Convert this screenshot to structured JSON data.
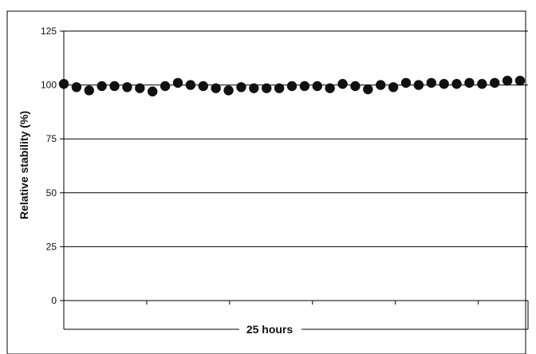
{
  "chart_data": {
    "type": "scatter",
    "title": "",
    "xlabel": "25 hours",
    "ylabel": "Relative stability (%)",
    "ylim": [
      0,
      125
    ],
    "yticks": [
      0,
      25,
      50,
      75,
      100,
      125
    ],
    "ytick_labels": [
      "0",
      "25",
      "50",
      "75",
      "100",
      "125"
    ],
    "grid": true,
    "legend": "none",
    "marker_color": "#111111",
    "series": [
      {
        "values": [
          100.5,
          99,
          97.5,
          99.5,
          99.5,
          99,
          98.5,
          97,
          99.5,
          101,
          100,
          99.5,
          98.5,
          97.5,
          99,
          98.5,
          98.5,
          98.5,
          99.5,
          99.5,
          99.5,
          98.5,
          100.5,
          99.5,
          98,
          100,
          99,
          101,
          100,
          101,
          100.5,
          100.5,
          101,
          100.5,
          101,
          102,
          102
        ]
      }
    ]
  }
}
